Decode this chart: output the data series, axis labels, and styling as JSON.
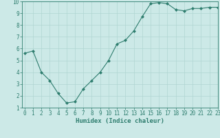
{
  "x": [
    0,
    1,
    2,
    3,
    4,
    5,
    6,
    7,
    8,
    9,
    10,
    11,
    12,
    13,
    14,
    15,
    16,
    17,
    18,
    19,
    20,
    21,
    22,
    23
  ],
  "y": [
    5.6,
    5.8,
    4.0,
    3.3,
    2.2,
    1.4,
    1.5,
    2.6,
    3.3,
    4.0,
    5.0,
    6.4,
    6.7,
    7.5,
    8.7,
    9.8,
    9.9,
    9.8,
    9.3,
    9.2,
    9.4,
    9.4,
    9.5,
    9.5
  ],
  "line_color": "#2e7d6e",
  "marker": "D",
  "marker_size": 2,
  "bg_color": "#cce9e7",
  "grid_color": "#b0d5d2",
  "xlabel": "Humidex (Indice chaleur)",
  "ylim": [
    1,
    10
  ],
  "xlim": [
    -0.3,
    23
  ],
  "yticks": [
    1,
    2,
    3,
    4,
    5,
    6,
    7,
    8,
    9,
    10
  ],
  "xticks": [
    0,
    1,
    2,
    3,
    4,
    5,
    6,
    7,
    8,
    9,
    10,
    11,
    12,
    13,
    14,
    15,
    16,
    17,
    18,
    19,
    20,
    21,
    22,
    23
  ],
  "label_fontsize": 6.5,
  "tick_fontsize": 5.5
}
